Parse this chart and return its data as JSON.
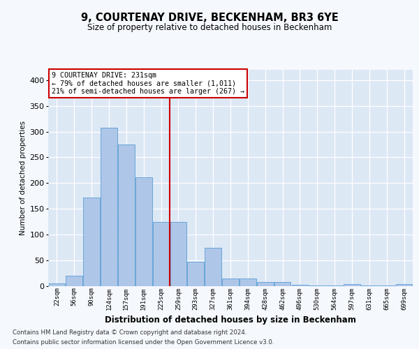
{
  "title": "9, COURTENAY DRIVE, BECKENHAM, BR3 6YE",
  "subtitle": "Size of property relative to detached houses in Beckenham",
  "xlabel": "Distribution of detached houses by size in Beckenham",
  "ylabel": "Number of detached properties",
  "bins": [
    "22sqm",
    "56sqm",
    "90sqm",
    "124sqm",
    "157sqm",
    "191sqm",
    "225sqm",
    "259sqm",
    "293sqm",
    "327sqm",
    "361sqm",
    "394sqm",
    "428sqm",
    "462sqm",
    "496sqm",
    "530sqm",
    "564sqm",
    "597sqm",
    "631sqm",
    "665sqm",
    "699sqm"
  ],
  "values": [
    6,
    21,
    172,
    308,
    275,
    211,
    125,
    125,
    48,
    75,
    15,
    15,
    8,
    8,
    3,
    1,
    1,
    4,
    1,
    1,
    4
  ],
  "bar_color": "#aec6e8",
  "bar_edge_color": "#5a9fd4",
  "background_color": "#dde8f5",
  "grid_color": "#ffffff",
  "vline_x_index": 6,
  "vline_color": "#cc0000",
  "annotation_text": "9 COURTENAY DRIVE: 231sqm\n← 79% of detached houses are smaller (1,011)\n21% of semi-detached houses are larger (267) →",
  "annotation_box_color": "#ffffff",
  "annotation_box_edge": "#cc0000",
  "footnote1": "Contains HM Land Registry data © Crown copyright and database right 2024.",
  "footnote2": "Contains public sector information licensed under the Open Government Licence v3.0.",
  "ylim": [
    0,
    420
  ],
  "yticks": [
    0,
    50,
    100,
    150,
    200,
    250,
    300,
    350,
    400
  ],
  "fig_bg": "#f5f8fd"
}
